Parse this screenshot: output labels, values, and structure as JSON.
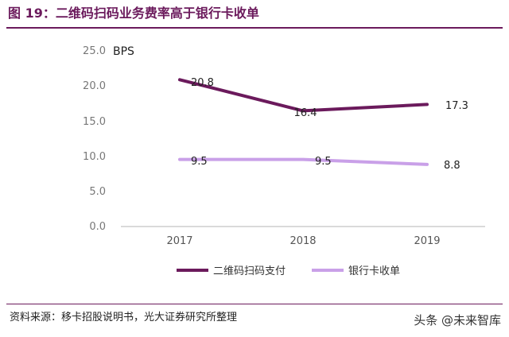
{
  "figure": {
    "title": "图 19：二维码扫码业务费率高于银行卡收单",
    "source": "资料来源：移卡招股说明书，光大证券研究所整理",
    "watermark": "头条 @未来智库"
  },
  "chart_data": {
    "type": "line",
    "title": "",
    "unit": "BPS",
    "xlabel": "",
    "ylabel": "",
    "categories": [
      "2017",
      "2018",
      "2019"
    ],
    "ylim": [
      0,
      25
    ],
    "yticks": [
      "25.0",
      "20.0",
      "15.0",
      "10.0",
      "5.0",
      "0.0"
    ],
    "grid": false,
    "legend_position": "bottom",
    "series": [
      {
        "name": "二维码扫码支付",
        "values": [
          20.8,
          16.4,
          17.3
        ],
        "labels": [
          "20.8",
          "16.4",
          "17.3"
        ],
        "color": "#6b1a5c"
      },
      {
        "name": "银行卡收单",
        "values": [
          9.5,
          9.5,
          8.8
        ],
        "labels": [
          "9.5",
          "9.5",
          "8.8"
        ],
        "color": "#c9a0e8"
      }
    ]
  }
}
